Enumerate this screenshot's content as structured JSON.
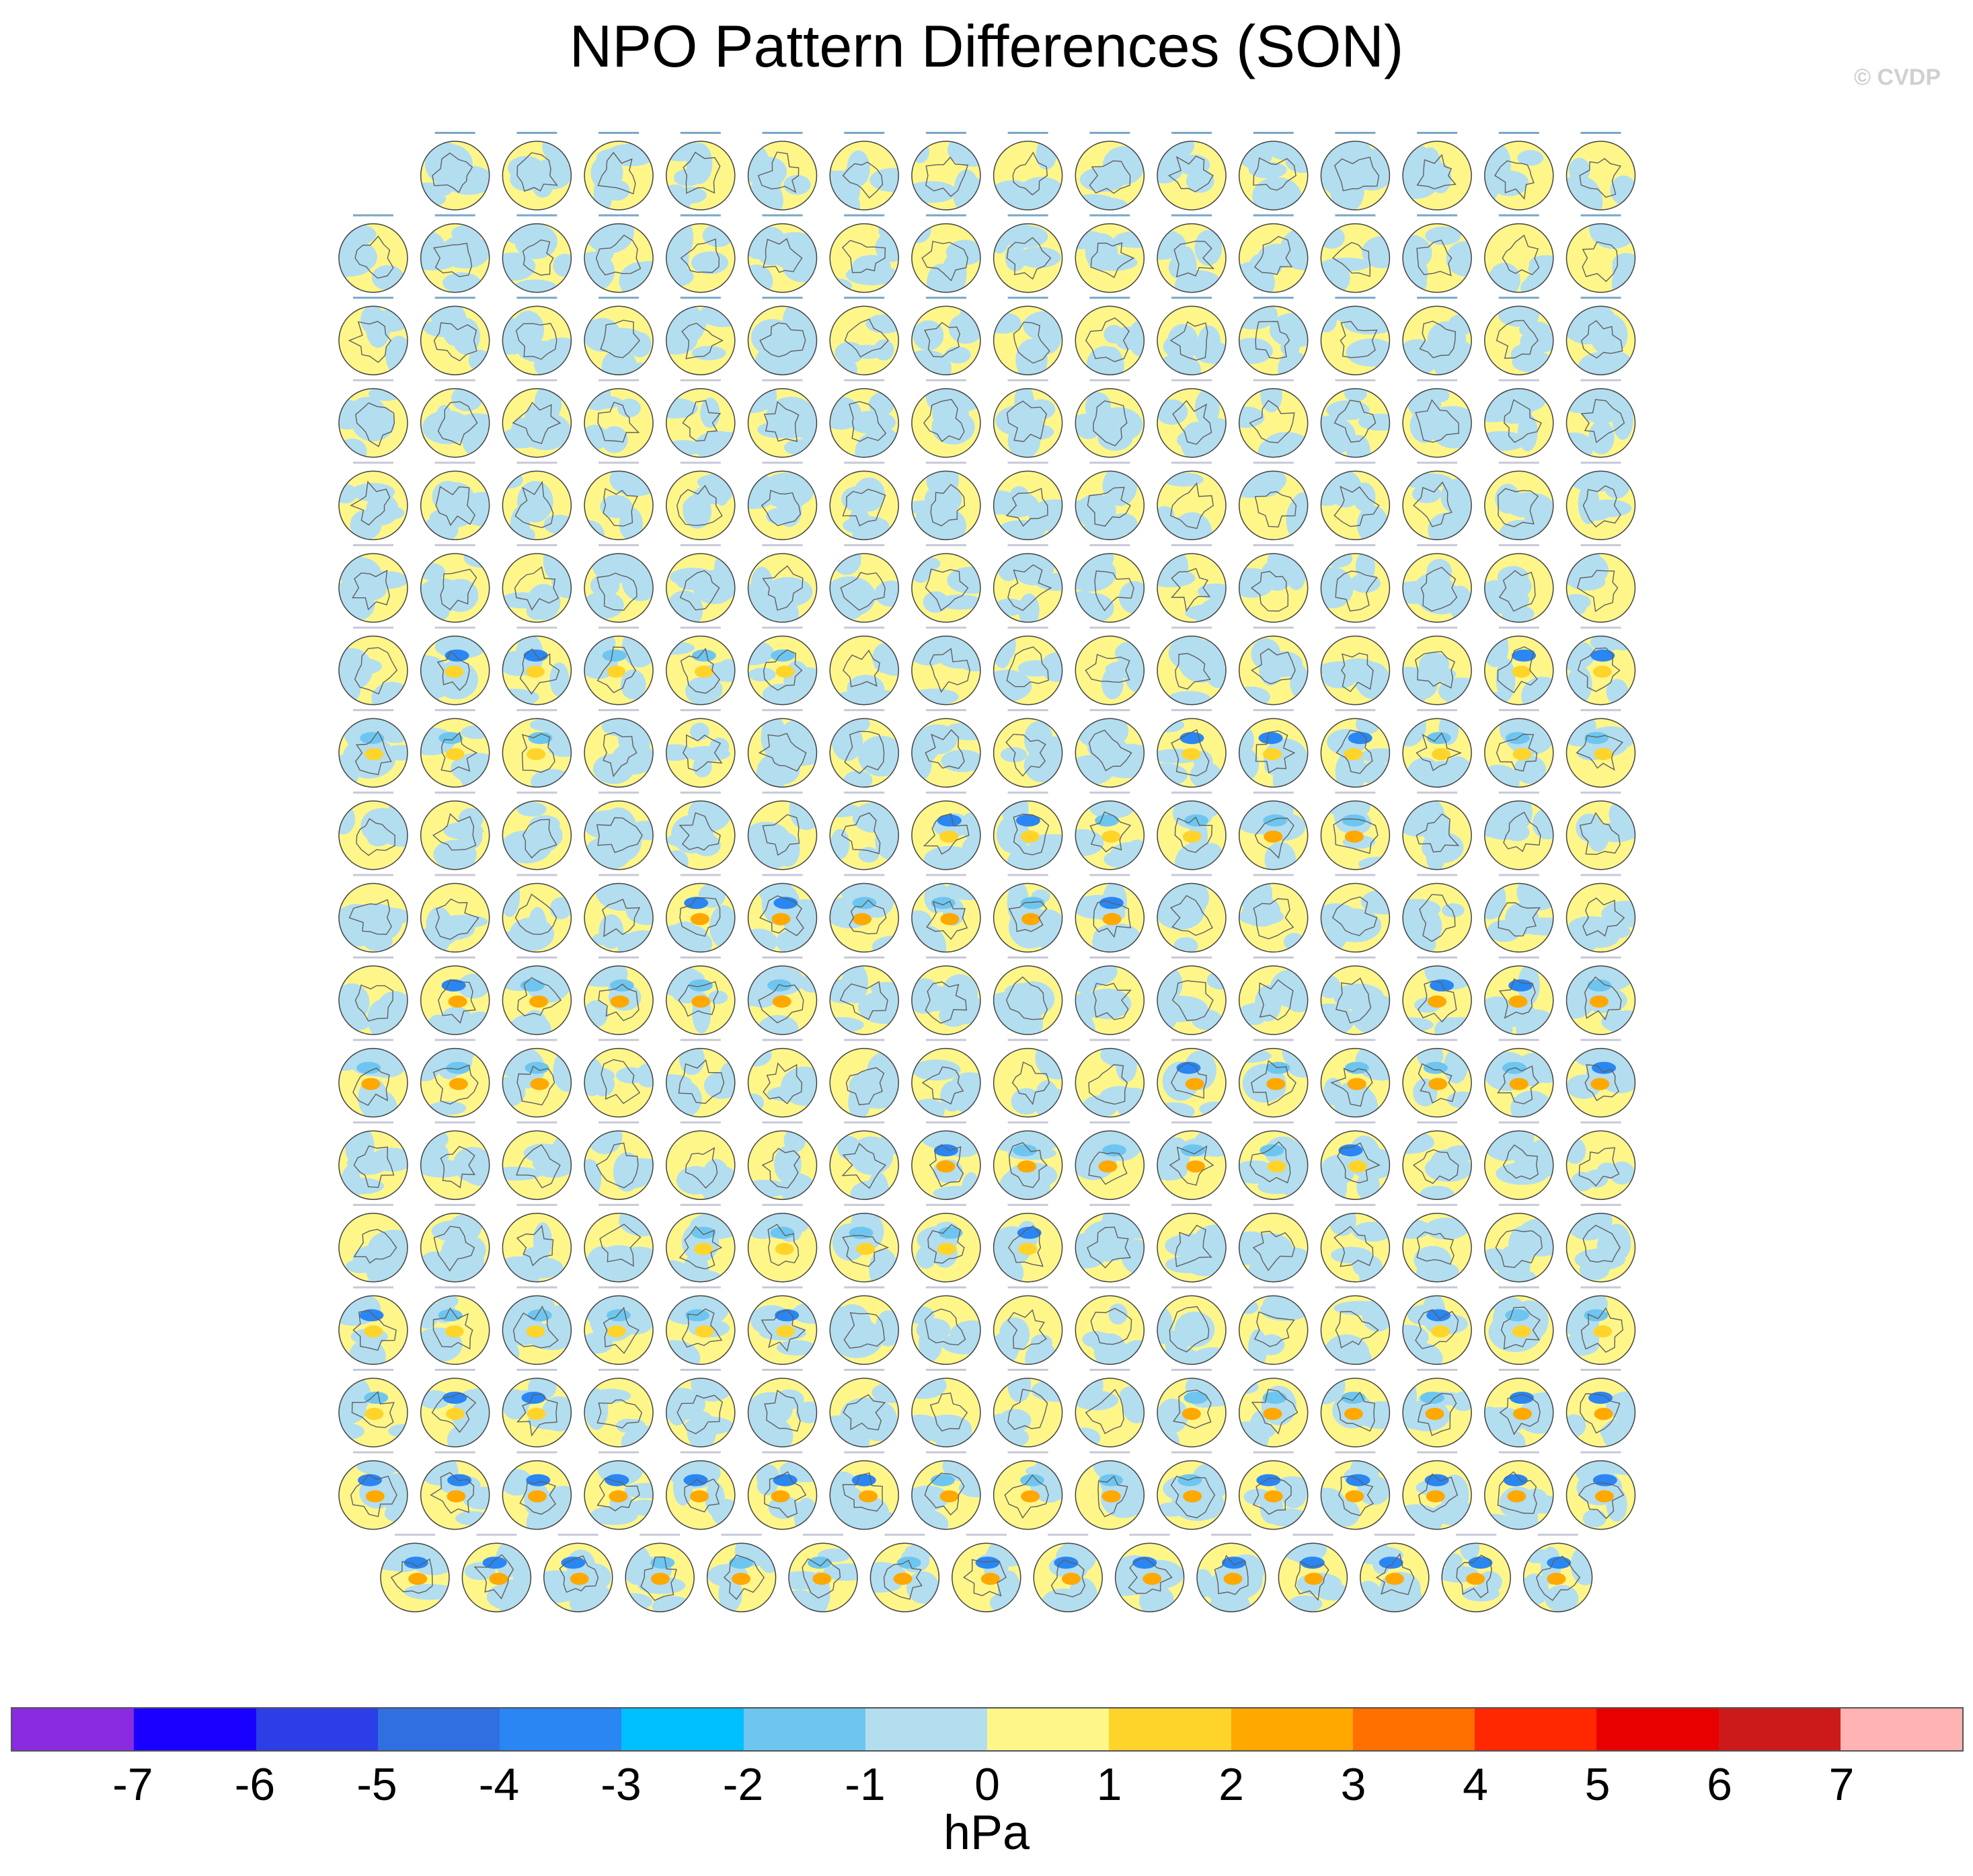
{
  "title": "NPO Pattern Differences (SON)",
  "watermark": "© CVDP",
  "chart_data": {
    "type": "heatmap",
    "description_type": "small-multiples polar maps",
    "title": "NPO Pattern Differences (SON)",
    "panel_grid": {
      "rows": 18,
      "columns": 16,
      "row_counts": [
        15,
        16,
        16,
        16,
        16,
        16,
        16,
        16,
        16,
        16,
        16,
        16,
        16,
        16,
        16,
        16,
        16,
        15
      ]
    },
    "colorbar": {
      "label": "hPa",
      "tick_labels": [
        "-7",
        "-6",
        "-5",
        "-4",
        "-3",
        "-2",
        "-1",
        "0",
        "1",
        "2",
        "3",
        "4",
        "5",
        "6",
        "7"
      ],
      "tick_values": [
        -7,
        -6,
        -5,
        -4,
        -3,
        -2,
        -1,
        0,
        1,
        2,
        3,
        4,
        5,
        6,
        7
      ],
      "colors": [
        "#8a2be2",
        "#1a00ff",
        "#2c3ee6",
        "#2f6fe0",
        "#2a86f2",
        "#00bfff",
        "#6ec6f0",
        "#b3def0",
        "#fff68a",
        "#ffd42a",
        "#ffa800",
        "#ff7000",
        "#ff2800",
        "#e80000",
        "#cc1a1a",
        "#ffb3b3"
      ]
    }
  }
}
